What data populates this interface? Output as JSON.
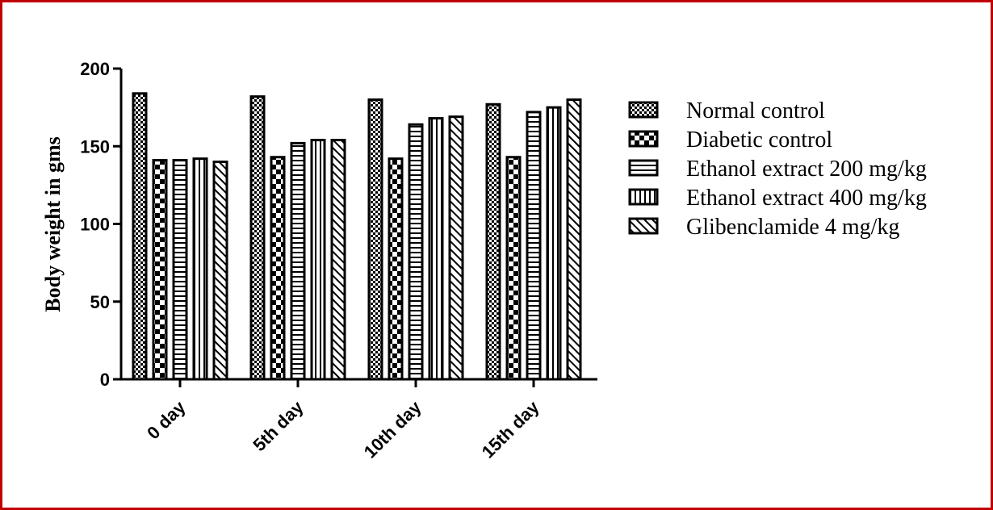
{
  "chart_data": {
    "type": "bar",
    "title": "",
    "xlabel": "",
    "ylabel": "Body weight in gms",
    "ylim": [
      0,
      200
    ],
    "yticks": [
      0,
      50,
      100,
      150,
      200
    ],
    "categories": [
      "0 day",
      "5th day",
      "10th day",
      "15th day"
    ],
    "series": [
      {
        "name": "Normal control",
        "pattern": "checker-fine",
        "values": [
          184,
          182,
          180,
          177
        ]
      },
      {
        "name": "Diabetic control",
        "pattern": "checker-coarse",
        "values": [
          141,
          143,
          142,
          143
        ]
      },
      {
        "name": "Ethanol extract 200 mg/kg",
        "pattern": "horizontal-lines",
        "values": [
          141,
          152,
          164,
          172
        ]
      },
      {
        "name": "Ethanol extract 400 mg/kg",
        "pattern": "vertical-lines",
        "values": [
          142,
          154,
          168,
          175
        ]
      },
      {
        "name": "Glibenclamide 4 mg/kg",
        "pattern": "diagonal-lines",
        "values": [
          140,
          154,
          169,
          180
        ]
      }
    ],
    "legend_position": "right",
    "grid": false
  },
  "colors": {
    "frame": "#c00000",
    "ink": "#000000",
    "background": "#ffffff"
  }
}
